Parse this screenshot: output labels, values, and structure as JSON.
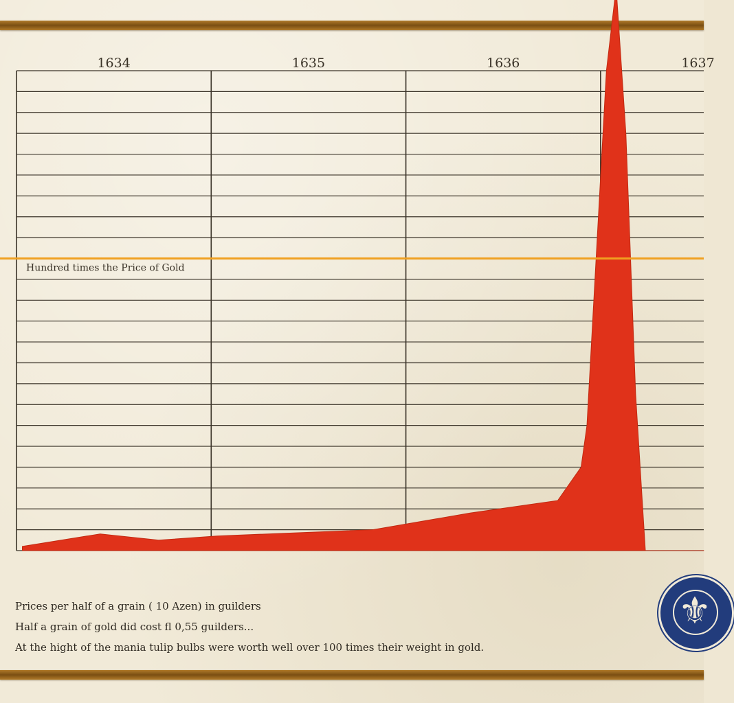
{
  "chart_data": {
    "type": "area",
    "x_ticks": [
      "1634",
      "1635",
      "1636",
      "1637"
    ],
    "x": [
      1634.0,
      1634.4,
      1634.7,
      1635.0,
      1635.8,
      1636.3,
      1636.6,
      1636.75,
      1636.87,
      1636.9,
      1637.0,
      1637.05,
      1637.1,
      1637.15,
      1637.2,
      1637.3,
      1637.5
    ],
    "values": [
      2,
      8,
      5,
      7,
      10,
      18,
      22,
      24,
      40,
      60,
      230,
      270,
      200,
      75,
      0,
      0,
      0
    ],
    "series_color": "#e0321a",
    "xlim": [
      1633.97,
      1637.5
    ],
    "ylim": [
      0,
      230
    ],
    "reference_line": {
      "value": 140,
      "label": "Hundred times the Price of Gold",
      "color": "#f0a020"
    },
    "grid": true
  },
  "footer": {
    "line1": "Prices per half of a grain ( 10 Azen) in guilders",
    "line2": "Half a grain of gold did cost  fl 0,55 guilders...",
    "line3": "At the hight of the mania tulip bulbs were worth well over 100 times their weight in gold."
  },
  "seal": {
    "glyph": "⚜"
  },
  "colors": {
    "border": "#8a5a1a",
    "grid": "#3a3328",
    "seal": "#223c7c"
  }
}
